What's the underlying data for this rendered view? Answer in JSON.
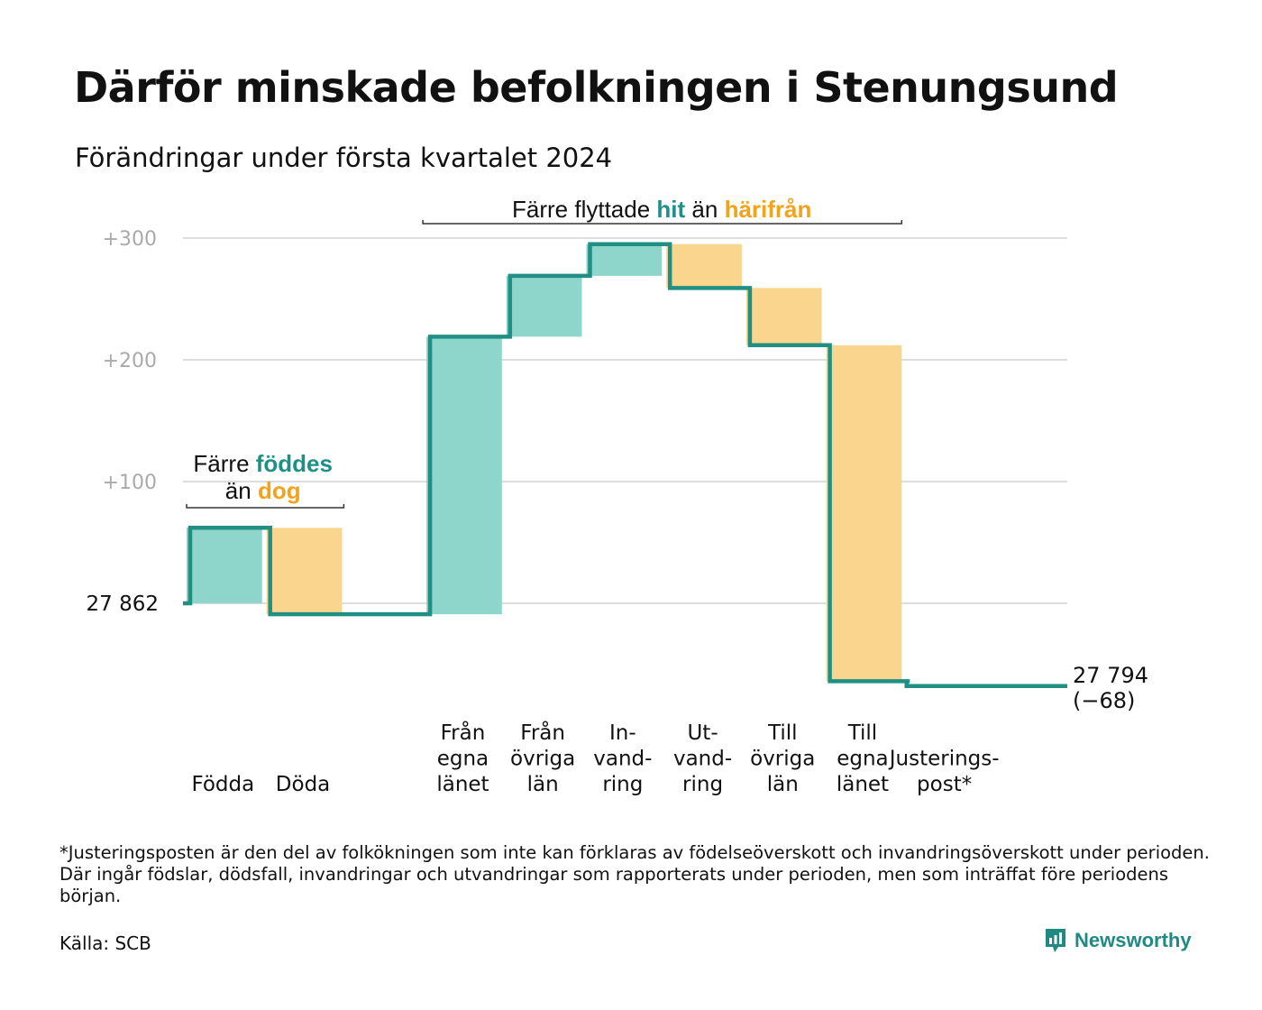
{
  "title": "Därför minskade befolkningen i Stenungsund",
  "subtitle": "Förändringar under första kvartalet 2024",
  "colors": {
    "teal_line": "#1f9083",
    "teal_fill": "#8ed5cb",
    "orange_fill": "#fad58e",
    "teal_text": "#1f9083",
    "orange_text": "#f2a31b",
    "grid": "#dddddd",
    "tick_text": "#aaaaaa"
  },
  "chart_data": {
    "type": "waterfall",
    "start_value": 27862,
    "start_label": "27 862",
    "end_value": 27794,
    "end_label": "27 794",
    "end_change_label": "(−68)",
    "y_ticks": [
      "+100",
      "+200",
      "+300"
    ],
    "y_tick_values": [
      100,
      200,
      300
    ],
    "ylim": [
      -80,
      310
    ],
    "grid": true,
    "steps": [
      {
        "label": [
          "Födda"
        ],
        "change": 62,
        "kind": "inflow"
      },
      {
        "label": [
          "Döda"
        ],
        "change": -71,
        "kind": "outflow"
      },
      {
        "label": [],
        "change": 0,
        "kind": "gap"
      },
      {
        "label": [
          "Från",
          "egna",
          "länet"
        ],
        "change": 228,
        "kind": "inflow"
      },
      {
        "label": [
          "Från",
          "övriga",
          "län"
        ],
        "change": 50,
        "kind": "inflow"
      },
      {
        "label": [
          "In-",
          "vand-",
          "ring"
        ],
        "change": 26,
        "kind": "inflow"
      },
      {
        "label": [
          "Ut-",
          "vand-",
          "ring"
        ],
        "change": -36,
        "kind": "outflow"
      },
      {
        "label": [
          "Till",
          "övriga",
          "län"
        ],
        "change": -47,
        "kind": "outflow"
      },
      {
        "label": [
          "Till",
          "egna",
          "länet"
        ],
        "change": -276,
        "kind": "outflow"
      },
      {
        "label": [
          "Justerings-",
          "post*"
        ],
        "change": -4,
        "kind": "adjustment"
      }
    ],
    "annotations": [
      {
        "lines": [
          [
            {
              "text": "Färre ",
              "color": "dark"
            },
            {
              "text": "föddes",
              "color": "teal"
            }
          ],
          [
            {
              "text": "än ",
              "color": "dark"
            },
            {
              "text": "dog",
              "color": "orange"
            }
          ]
        ]
      },
      {
        "lines": [
          [
            {
              "text": "Färre flyttade ",
              "color": "dark"
            },
            {
              "text": "hit",
              "color": "teal"
            },
            {
              "text": "  än ",
              "color": "dark"
            },
            {
              "text": "härifrån",
              "color": "orange"
            }
          ]
        ]
      }
    ]
  },
  "footnote": "*Justeringsposten är den del av folkökningen som inte kan förklaras av födelseöverskott och invandringsöverskott under perioden. Där ingår födslar, dödsfall, invandringar och utvandringar som rapporterats under perioden, men som inträffat före periodens början.",
  "source": "Källa: SCB",
  "brand": {
    "name": "Newsworthy",
    "icon": "newsworthy-logo-icon"
  }
}
